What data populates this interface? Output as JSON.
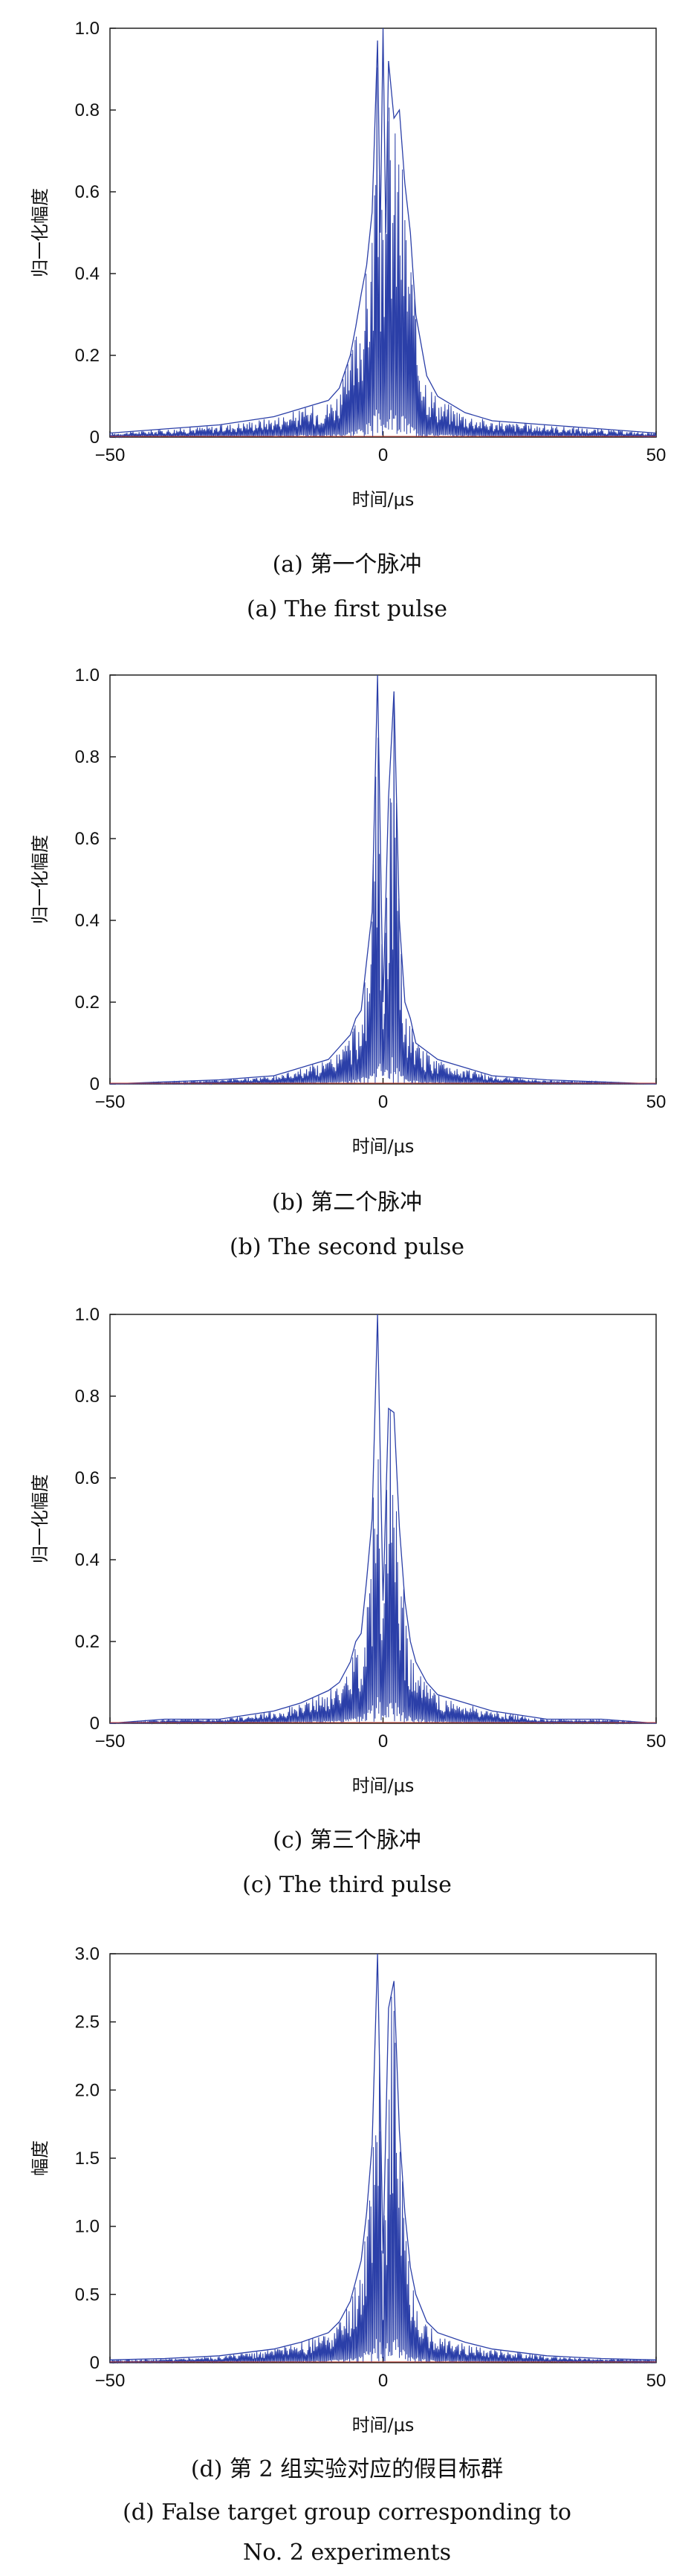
{
  "chart_data": [
    {
      "type": "line",
      "caption_cn": "(a) 第一个脉冲",
      "caption_en": "(a) The first pulse",
      "xlabel": "时间/μs",
      "ylabel": "归一化幅度",
      "xlim": [
        -50,
        50
      ],
      "ylim": [
        0,
        1.0
      ],
      "x_ticks": [
        "−50",
        "0",
        "50"
      ],
      "y_ticks": [
        "0",
        "0.2",
        "0.4",
        "0.6",
        "0.8",
        "1.0"
      ],
      "line_color": "#2b3fa8",
      "series": [
        {
          "x": [
            -50,
            -40,
            -30,
            -20,
            -15,
            -10,
            -8,
            -6,
            -5,
            -4,
            -3,
            -2,
            -1,
            -0.5,
            0,
            0.5,
            1,
            2,
            3,
            4,
            5,
            6,
            8,
            10,
            15,
            20,
            30,
            40,
            50
          ],
          "y": [
            0.01,
            0.02,
            0.03,
            0.05,
            0.07,
            0.09,
            0.12,
            0.2,
            0.27,
            0.35,
            0.42,
            0.55,
            0.97,
            0.5,
            1.0,
            0.5,
            0.92,
            0.78,
            0.8,
            0.62,
            0.5,
            0.3,
            0.15,
            0.1,
            0.06,
            0.04,
            0.03,
            0.02,
            0.01
          ]
        }
      ]
    },
    {
      "type": "line",
      "caption_cn": "(b) 第二个脉冲",
      "caption_en": "(b) The second pulse",
      "xlabel": "时间/μs",
      "ylabel": "归一化幅度",
      "xlim": [
        -50,
        50
      ],
      "ylim": [
        0,
        1.0
      ],
      "x_ticks": [
        "−50",
        "0",
        "50"
      ],
      "y_ticks": [
        "0",
        "0.2",
        "0.4",
        "0.6",
        "0.8",
        "1.0"
      ],
      "line_color": "#2b3fa8",
      "series": [
        {
          "x": [
            -50,
            -40,
            -30,
            -20,
            -15,
            -10,
            -8,
            -6,
            -5,
            -4,
            -3,
            -2,
            -1,
            0,
            1,
            2,
            3,
            4,
            5,
            6,
            8,
            10,
            15,
            20,
            30,
            40,
            50
          ],
          "y": [
            0.0,
            0.005,
            0.01,
            0.02,
            0.04,
            0.06,
            0.09,
            0.12,
            0.16,
            0.18,
            0.3,
            0.42,
            1.0,
            0.2,
            0.7,
            0.96,
            0.4,
            0.2,
            0.16,
            0.1,
            0.08,
            0.06,
            0.04,
            0.02,
            0.01,
            0.005,
            0.0
          ]
        }
      ]
    },
    {
      "type": "line",
      "caption_cn": "(c) 第三个脉冲",
      "caption_en": "(c) The third pulse",
      "xlabel": "时间/μs",
      "ylabel": "归一化幅度",
      "xlim": [
        -50,
        50
      ],
      "ylim": [
        0,
        1.0
      ],
      "x_ticks": [
        "−50",
        "0",
        "50"
      ],
      "y_ticks": [
        "0",
        "0.2",
        "0.4",
        "0.6",
        "0.8",
        "1.0"
      ],
      "line_color": "#2b3fa8",
      "series": [
        {
          "x": [
            -50,
            -40,
            -30,
            -20,
            -15,
            -10,
            -8,
            -6,
            -5,
            -4,
            -3,
            -2,
            -1,
            0,
            1,
            2,
            3,
            4,
            5,
            6,
            8,
            10,
            15,
            20,
            30,
            40,
            50
          ],
          "y": [
            0.0,
            0.01,
            0.01,
            0.03,
            0.05,
            0.08,
            0.1,
            0.15,
            0.2,
            0.22,
            0.35,
            0.5,
            1.0,
            0.3,
            0.77,
            0.76,
            0.48,
            0.3,
            0.2,
            0.15,
            0.1,
            0.07,
            0.05,
            0.03,
            0.01,
            0.01,
            0.0
          ]
        }
      ]
    },
    {
      "type": "line",
      "caption_cn": "(d) 第 2 组实验对应的假目标群",
      "caption_en": "(d) False target group corresponding to",
      "caption_en2": "No. 2 experiments",
      "xlabel": "时间/μs",
      "ylabel": "幅度",
      "xlim": [
        -50,
        50
      ],
      "ylim": [
        0,
        3.0
      ],
      "x_ticks": [
        "−50",
        "0",
        "50"
      ],
      "y_ticks": [
        "0",
        "0.5",
        "1.0",
        "1.5",
        "2.0",
        "2.5",
        "3.0"
      ],
      "line_color": "#2b3fa8",
      "series": [
        {
          "x": [
            -50,
            -40,
            -30,
            -20,
            -15,
            -10,
            -8,
            -6,
            -5,
            -4,
            -3,
            -2,
            -1,
            0,
            1,
            2,
            3,
            4,
            5,
            6,
            8,
            10,
            15,
            20,
            30,
            40,
            50
          ],
          "y": [
            0.02,
            0.03,
            0.05,
            0.1,
            0.15,
            0.22,
            0.3,
            0.45,
            0.6,
            0.75,
            1.1,
            1.6,
            3.0,
            0.8,
            2.6,
            2.8,
            1.7,
            1.1,
            0.7,
            0.5,
            0.3,
            0.22,
            0.15,
            0.1,
            0.05,
            0.03,
            0.02
          ]
        }
      ]
    }
  ]
}
